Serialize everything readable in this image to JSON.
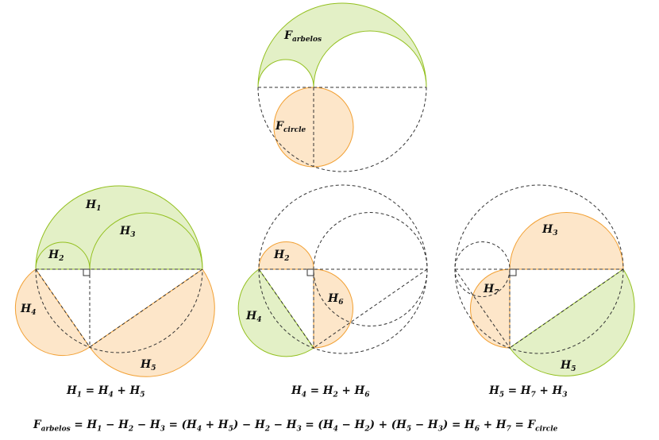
{
  "colors": {
    "green_fill": "#e3f0c6",
    "green_stroke": "#93c01f",
    "orange_fill": "#fde6c9",
    "orange_stroke": "#f2a033",
    "dashed": "#333333"
  },
  "labels": {
    "top_arbelos": {
      "base": "F",
      "sub": "arbelos"
    },
    "top_circle": {
      "base": "F",
      "sub": "circle"
    },
    "left_h1": {
      "base": "H",
      "sub": "1"
    },
    "left_h2": {
      "base": "H",
      "sub": "2"
    },
    "left_h3": {
      "base": "H",
      "sub": "3"
    },
    "left_h4": {
      "base": "H",
      "sub": "4"
    },
    "left_h5": {
      "base": "H",
      "sub": "5"
    },
    "mid_h2": {
      "base": "H",
      "sub": "2"
    },
    "mid_h4": {
      "base": "H",
      "sub": "4"
    },
    "mid_h6": {
      "base": "H",
      "sub": "6"
    },
    "right_h3": {
      "base": "H",
      "sub": "3"
    },
    "right_h7": {
      "base": "H",
      "sub": "7"
    },
    "right_h5": {
      "base": "H",
      "sub": "5"
    }
  },
  "equations": {
    "left": [
      [
        "H",
        "1"
      ],
      [
        " = "
      ],
      [
        "H",
        "4"
      ],
      [
        " + "
      ],
      [
        "H",
        "5"
      ]
    ],
    "middle": [
      [
        "H",
        "4"
      ],
      [
        " = "
      ],
      [
        "H",
        "2"
      ],
      [
        " + "
      ],
      [
        "H",
        "6"
      ]
    ],
    "right": [
      [
        "H",
        "5"
      ],
      [
        " = "
      ],
      [
        "H",
        "7"
      ],
      [
        " + "
      ],
      [
        "H",
        "3"
      ]
    ],
    "bottom": [
      [
        "F",
        "arbelos"
      ],
      [
        " = "
      ],
      [
        "H",
        "1"
      ],
      [
        " − "
      ],
      [
        "H",
        "2"
      ],
      [
        " − "
      ],
      [
        "H",
        "3"
      ],
      [
        " = ("
      ],
      [
        "H",
        "4"
      ],
      [
        " + "
      ],
      [
        "H",
        "5"
      ],
      [
        ") − "
      ],
      [
        "H",
        "2"
      ],
      [
        " − "
      ],
      [
        "H",
        "3"
      ],
      [
        " = ("
      ],
      [
        "H",
        "4"
      ],
      [
        " − "
      ],
      [
        "H",
        "2"
      ],
      [
        ") + ("
      ],
      [
        "H",
        "5"
      ],
      [
        " − "
      ],
      [
        "H",
        "3"
      ],
      [
        ") = "
      ],
      [
        "H",
        "6"
      ],
      [
        " + "
      ],
      [
        "H",
        "7"
      ],
      [
        " = "
      ],
      [
        "F",
        "circle"
      ]
    ]
  }
}
